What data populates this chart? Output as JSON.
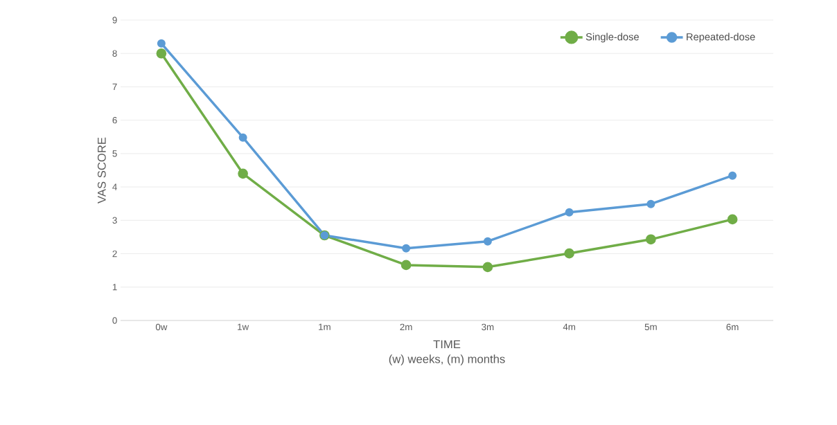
{
  "chart_data": {
    "type": "line",
    "xlabel": "TIME",
    "ylabel": "VAS SCORE",
    "annotations": [
      "(w) weeks, (m) months"
    ],
    "categories": [
      "0w",
      "1w",
      "1m",
      "2m",
      "3m",
      "4m",
      "5m",
      "6m"
    ],
    "series": [
      {
        "name": "Single-dose",
        "color": "#70ad47",
        "values": [
          8.0,
          4.4,
          2.55,
          1.66,
          1.6,
          2.01,
          2.43,
          3.03
        ]
      },
      {
        "name": "Repeated-dose",
        "color": "#5b9bd5",
        "values": [
          8.3,
          5.48,
          2.55,
          2.16,
          2.37,
          3.24,
          3.49,
          4.34
        ]
      }
    ],
    "ylim": [
      0,
      9
    ],
    "yticks": [
      0,
      1,
      2,
      3,
      4,
      5,
      6,
      7,
      8,
      9
    ],
    "grid": "y",
    "legend": "top right",
    "marker": "circle",
    "line_style": "solid"
  }
}
